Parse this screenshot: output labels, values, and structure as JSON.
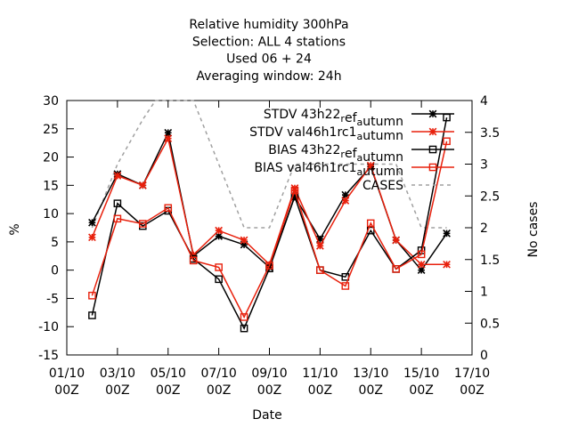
{
  "chart_data": {
    "type": "line",
    "title_lines": [
      "Relative humidity 300hPa",
      "Selection: ALL       4 stations",
      "Used  06  + 24",
      "Averaging window: 24h"
    ],
    "xlabel": "Date",
    "ylabel": "%",
    "y2label": "No cases",
    "x_ticks": [
      {
        "day": 1,
        "line1": "01/10",
        "line2": "00Z"
      },
      {
        "day": 3,
        "line1": "03/10",
        "line2": "00Z"
      },
      {
        "day": 5,
        "line1": "05/10",
        "line2": "00Z"
      },
      {
        "day": 7,
        "line1": "07/10",
        "line2": "00Z"
      },
      {
        "day": 9,
        "line1": "09/10",
        "line2": "00Z"
      },
      {
        "day": 11,
        "line1": "11/10",
        "line2": "00Z"
      },
      {
        "day": 13,
        "line1": "13/10",
        "line2": "00Z"
      },
      {
        "day": 15,
        "line1": "15/10",
        "line2": "00Z"
      },
      {
        "day": 17,
        "line1": "17/10",
        "line2": "00Z"
      }
    ],
    "xlim": [
      1,
      17
    ],
    "ylim": [
      -15,
      30
    ],
    "y_ticks": [
      -15,
      -10,
      -5,
      0,
      5,
      10,
      15,
      20,
      25,
      30
    ],
    "y2lim": [
      0,
      4
    ],
    "y2_ticks": [
      0,
      0.5,
      1,
      1.5,
      2,
      2.5,
      3,
      3.5,
      4
    ],
    "grid": false,
    "legend_position": "top-right",
    "series": [
      {
        "name": "STDV 43h22_ref_autumn",
        "legend": {
          "pre": "STDV 43h22",
          "sub1": "r",
          "mid": "ef",
          "sub2": "a",
          "post": "utumn"
        },
        "axis": "y",
        "color": "#000000",
        "marker": "star",
        "dash": "",
        "points": [
          [
            2,
            8.4
          ],
          [
            3,
            17
          ],
          [
            4,
            15
          ],
          [
            5,
            24.3
          ],
          [
            6,
            2.5
          ],
          [
            7,
            6
          ],
          [
            8,
            4.5
          ],
          [
            9,
            0.5
          ],
          [
            10,
            13
          ],
          [
            11,
            5.5
          ],
          [
            12,
            13.3
          ],
          [
            13,
            18.3
          ],
          [
            14,
            5.3
          ],
          [
            15,
            0
          ],
          [
            16,
            6.5
          ]
        ]
      },
      {
        "name": "STDV val46h1rc1_autumn",
        "legend": {
          "pre": "STDV val46h1rc1",
          "sub1": "",
          "mid": "",
          "sub2": "a",
          "post": "utumn"
        },
        "axis": "y",
        "color": "#e8200c",
        "marker": "star",
        "dash": "",
        "points": [
          [
            2,
            5.8
          ],
          [
            3,
            16.7
          ],
          [
            4,
            15
          ],
          [
            5,
            23.3
          ],
          [
            6,
            2.7
          ],
          [
            7,
            7
          ],
          [
            8,
            5.3
          ],
          [
            9,
            1
          ],
          [
            10,
            14.5
          ],
          [
            11,
            4.3
          ],
          [
            12,
            12.3
          ],
          [
            13,
            18.5
          ],
          [
            14,
            5.3
          ],
          [
            15,
            1
          ],
          [
            16,
            1
          ]
        ]
      },
      {
        "name": "BIAS 43h22_ref_autumn",
        "legend": {
          "pre": "BIAS 43h22",
          "sub1": "r",
          "mid": "ef",
          "sub2": "a",
          "post": "utumn"
        },
        "axis": "y",
        "color": "#000000",
        "marker": "square",
        "dash": "",
        "points": [
          [
            2,
            -8
          ],
          [
            3,
            11.8
          ],
          [
            4,
            7.8
          ],
          [
            5,
            10.5
          ],
          [
            6,
            2
          ],
          [
            7,
            -1.6
          ],
          [
            8,
            -10.3
          ],
          [
            9,
            0.3
          ],
          [
            10,
            13
          ],
          [
            11,
            0
          ],
          [
            12,
            -1.2
          ],
          [
            13,
            7
          ],
          [
            14,
            0.2
          ],
          [
            15,
            3.5
          ],
          [
            16,
            27
          ]
        ]
      },
      {
        "name": "BIAS val46h1rc1_autumn",
        "legend": {
          "pre": "BIAS val46h1rc1",
          "sub1": "",
          "mid": "",
          "sub2": "a",
          "post": "utumn"
        },
        "axis": "y",
        "color": "#e8200c",
        "marker": "square",
        "dash": "",
        "points": [
          [
            2,
            -4.5
          ],
          [
            3,
            9.1
          ],
          [
            4,
            8.2
          ],
          [
            5,
            11
          ],
          [
            6,
            1.7
          ],
          [
            7,
            0.5
          ],
          [
            8,
            -8.3
          ],
          [
            9,
            0.8
          ],
          [
            10,
            14.1
          ],
          [
            11,
            0
          ],
          [
            12,
            -2.8
          ],
          [
            13,
            8.3
          ],
          [
            14,
            0.2
          ],
          [
            15,
            2.8
          ],
          [
            16,
            22.8
          ]
        ]
      },
      {
        "name": "CASES",
        "legend": {
          "pre": "CASES",
          "sub1": "",
          "mid": "",
          "sub2": "",
          "post": ""
        },
        "axis": "y2",
        "color": "#a0a0a0",
        "marker": "none",
        "dash": "4,4",
        "points": [
          [
            2,
            2
          ],
          [
            3,
            3
          ],
          [
            4,
            3.7
          ],
          [
            4.5,
            4
          ],
          [
            6,
            4
          ],
          [
            7,
            3
          ],
          [
            8,
            2
          ],
          [
            9,
            2
          ],
          [
            10,
            3
          ],
          [
            11,
            3
          ],
          [
            12,
            3
          ],
          [
            13,
            3
          ],
          [
            14,
            3
          ],
          [
            15,
            2
          ],
          [
            16,
            2
          ]
        ]
      }
    ]
  }
}
